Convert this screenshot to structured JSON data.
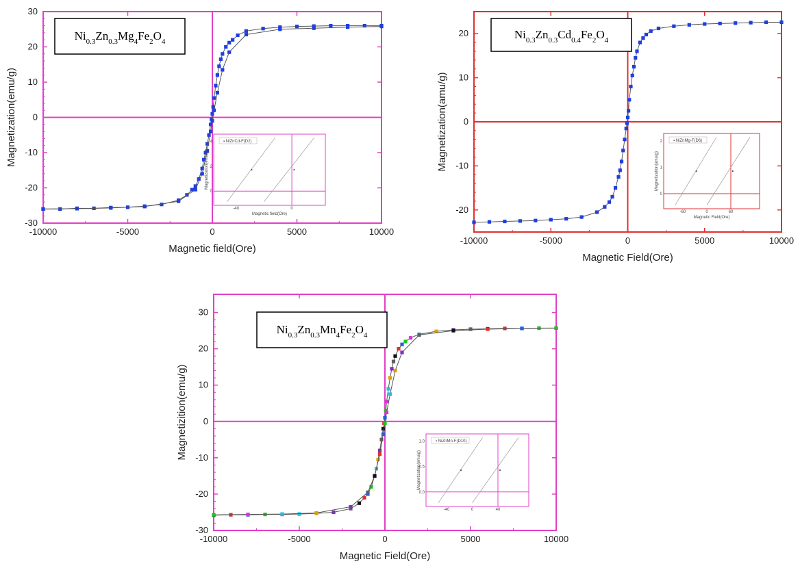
{
  "chart_data": [
    {
      "type": "scatter",
      "formula": {
        "parts": [
          [
            "Ni",
            false
          ],
          [
            "0.3",
            true
          ],
          [
            "Zn",
            false
          ],
          [
            "0.3",
            true
          ],
          [
            "Mg",
            false
          ],
          [
            "4",
            true
          ],
          [
            "Fe",
            false
          ],
          [
            "2",
            true
          ],
          [
            "O",
            false
          ],
          [
            "4",
            true
          ]
        ]
      },
      "xlabel": "Magnetic field(Ore)",
      "ylabel": "Magnetization(emu/g)",
      "xlim": [
        -10000,
        10000
      ],
      "ylim": [
        -30,
        30
      ],
      "xticks": [
        -10000,
        -5000,
        0,
        5000,
        10000
      ],
      "yticks": [
        -30,
        -20,
        -10,
        0,
        10,
        20,
        30
      ],
      "frame_color": "#e040c8",
      "marker_color": "#1f3fe0",
      "multicolor": false,
      "series": [
        {
          "x": [
            -10000,
            -9000,
            -8000,
            -7000,
            -6000,
            -5000,
            -4000,
            -3000,
            -2000,
            -1500,
            -1200,
            -1000,
            -800,
            -600,
            -500,
            -400,
            -300,
            -200,
            -100,
            -50,
            0,
            50,
            100,
            200,
            300,
            400,
            500,
            600,
            800,
            1000,
            1200,
            1500,
            2000,
            3000,
            4000,
            5000,
            6000,
            7000,
            8000,
            9000,
            10000
          ],
          "y": [
            -26,
            -26,
            -25.8,
            -25.8,
            -25.6,
            -25.5,
            -25.2,
            -24.7,
            -23.5,
            -22,
            -20.5,
            -19.5,
            -17.5,
            -14.5,
            -12,
            -10,
            -7.5,
            -5,
            -2,
            -0.5,
            1,
            3,
            5.5,
            9,
            12,
            14.5,
            16.5,
            18,
            20,
            21.2,
            22,
            23.3,
            24.5,
            25.2,
            25.6,
            25.8,
            25.9,
            26,
            26,
            26,
            26
          ]
        },
        {
          "x": [
            -10000,
            -8000,
            -6000,
            -4000,
            -2000,
            -1000,
            -600,
            -300,
            -100,
            0,
            100,
            300,
            600,
            1000,
            2000,
            4000,
            6000,
            8000,
            10000
          ],
          "y": [
            -26,
            -25.9,
            -25.7,
            -25.3,
            -23.8,
            -20.5,
            -16,
            -9.5,
            -4,
            -1,
            2,
            7,
            13.5,
            18.5,
            23.5,
            25,
            25.3,
            25.6,
            25.8
          ]
        }
      ],
      "inset": {
        "legend": "NiZnCd-F(D2)",
        "xlabel": "Magnetic field(Ore)",
        "ylabel": "Magnetization(emu/g)",
        "xticks": [
          "-40",
          "0"
        ],
        "yticks": [
          "0",
          "2",
          "4"
        ]
      }
    },
    {
      "type": "scatter",
      "formula": {
        "parts": [
          [
            "Ni",
            false
          ],
          [
            "0.3",
            true
          ],
          [
            "Zn",
            false
          ],
          [
            "0.3",
            true
          ],
          [
            "Cd",
            false
          ],
          [
            "0.4",
            true
          ],
          [
            "Fe",
            false
          ],
          [
            "2",
            true
          ],
          [
            "O",
            false
          ],
          [
            "4",
            true
          ]
        ]
      },
      "xlabel": "Magnetic Field(Ore)",
      "ylabel": "Magnetization(amu/g)",
      "xlim": [
        -10000,
        10000
      ],
      "ylim": [
        -25,
        25
      ],
      "xticks": [
        -10000,
        -5000,
        0,
        5000,
        10000
      ],
      "yticks": [
        -20,
        -10,
        0,
        10,
        20
      ],
      "frame_color": "#e03030",
      "marker_color": "#1f3fe0",
      "multicolor": false,
      "series": [
        {
          "x": [
            -10000,
            -9000,
            -8000,
            -7000,
            -6000,
            -5000,
            -4000,
            -3000,
            -2000,
            -1500,
            -1200,
            -1000,
            -800,
            -600,
            -500,
            -400,
            -300,
            -200,
            -100,
            -50,
            0,
            50,
            100,
            200,
            300,
            400,
            500,
            600,
            800,
            1000,
            1200,
            1500,
            2000,
            3000,
            4000,
            5000,
            6000,
            7000,
            8000,
            9000,
            10000
          ],
          "y": [
            -22.8,
            -22.7,
            -22.6,
            -22.5,
            -22.4,
            -22.2,
            -22,
            -21.6,
            -20.5,
            -19.3,
            -18.2,
            -17,
            -15,
            -12.5,
            -11,
            -9,
            -6.5,
            -4,
            -1.5,
            -0.3,
            1,
            2.5,
            5,
            8,
            10.5,
            12.5,
            14.5,
            16,
            18,
            19,
            19.8,
            20.6,
            21.2,
            21.7,
            22,
            22.2,
            22.3,
            22.4,
            22.5,
            22.6,
            22.6
          ]
        }
      ],
      "inset": {
        "legend": "NiZnMg-F(D6)",
        "xlabel": "Magnetic Field(Ore)",
        "ylabel": "Magnetization(amu/g)",
        "xticks": [
          "-60",
          "0",
          "60"
        ],
        "yticks": [
          "0",
          "1",
          "2"
        ]
      }
    },
    {
      "type": "scatter",
      "formula": {
        "parts": [
          [
            "Ni",
            false
          ],
          [
            "0.3",
            true
          ],
          [
            "Zn",
            false
          ],
          [
            "0.3",
            true
          ],
          [
            "Mn",
            false
          ],
          [
            "4",
            true
          ],
          [
            "Fe",
            false
          ],
          [
            "2",
            true
          ],
          [
            "O",
            false
          ],
          [
            "4",
            true
          ]
        ]
      },
      "xlabel": "Magnetic Field(Ore)",
      "ylabel": "Magnetizition(emu/g)",
      "xlim": [
        -10000,
        10000
      ],
      "ylim": [
        -30,
        35
      ],
      "xticks": [
        -10000,
        -5000,
        0,
        5000,
        10000
      ],
      "yticks": [
        -30,
        -20,
        -10,
        0,
        10,
        20,
        30
      ],
      "frame_color": "#e040c8",
      "marker_color": "#1f3fe0",
      "multicolor": true,
      "palette": [
        "#111111",
        "#e03030",
        "#2060e0",
        "#20c020",
        "#e030e0",
        "#20c0e0",
        "#e0a000",
        "#8030c0",
        "#606060"
      ],
      "series": [
        {
          "x": [
            -10000,
            -9000,
            -8000,
            -7000,
            -6000,
            -5000,
            -4000,
            -3000,
            -2000,
            -1500,
            -1200,
            -1000,
            -800,
            -600,
            -500,
            -400,
            -300,
            -200,
            -100,
            -50,
            0,
            50,
            100,
            200,
            300,
            400,
            500,
            600,
            800,
            1000,
            1200,
            1500,
            2000,
            3000,
            4000,
            5000,
            6000,
            7000,
            8000,
            9000,
            10000
          ],
          "y": [
            -25.8,
            -25.7,
            -25.7,
            -25.6,
            -25.6,
            -25.5,
            -25.3,
            -25,
            -24,
            -22.5,
            -21,
            -20,
            -18,
            -15,
            -13,
            -10.5,
            -8,
            -5,
            -2,
            -0.5,
            1,
            3,
            5.5,
            9,
            12,
            14.5,
            16.5,
            18,
            20,
            21.2,
            22,
            23,
            24,
            24.8,
            25.2,
            25.4,
            25.5,
            25.6,
            25.6,
            25.7,
            25.7
          ]
        },
        {
          "x": [
            -10000,
            -8000,
            -6000,
            -4000,
            -2000,
            -1000,
            -600,
            -300,
            -100,
            0,
            100,
            300,
            600,
            1000,
            2000,
            4000,
            6000,
            8000,
            10000
          ],
          "y": [
            -25.7,
            -25.6,
            -25.5,
            -25.2,
            -23.5,
            -19.5,
            -15,
            -9,
            -3.5,
            -0.5,
            2.5,
            7.5,
            14,
            19,
            23.8,
            25,
            25.4,
            25.6,
            25.7
          ]
        }
      ],
      "inset": {
        "legend": "NiZnMn-F(D10)",
        "xlabel": "",
        "ylabel": "Magnetization(emu/g)",
        "xticks": [
          "-40",
          "0",
          "40"
        ],
        "yticks": [
          "0.0",
          "0.5",
          "1.0"
        ]
      }
    }
  ]
}
